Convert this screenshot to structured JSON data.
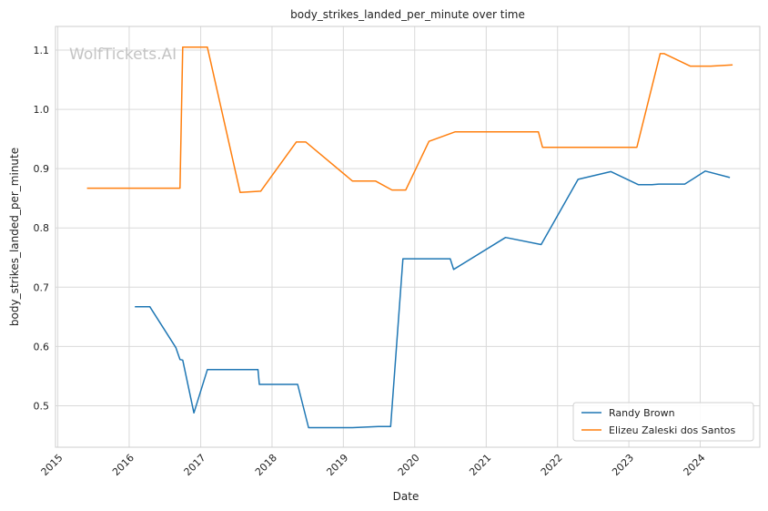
{
  "watermark": "WolfTickets.AI",
  "chart_data": {
    "type": "line",
    "title": "body_strikes_landed_per_minute over time",
    "xlabel": "Date",
    "ylabel": "body_strikes_landed_per_minute",
    "xlim": [
      "2014-12-20",
      "2024-11-01"
    ],
    "ylim": [
      0.43,
      1.14
    ],
    "x_ticks": [
      "2015",
      "2016",
      "2017",
      "2018",
      "2019",
      "2020",
      "2021",
      "2022",
      "2023",
      "2024"
    ],
    "y_ticks": [
      "0.5",
      "0.6",
      "0.7",
      "0.8",
      "0.9",
      "1.0",
      "1.1"
    ],
    "y_tick_values": [
      0.5,
      0.6,
      0.7,
      0.8,
      0.9,
      1.0,
      1.1
    ],
    "grid": true,
    "legend_position": "lower-right",
    "series": [
      {
        "name": "Randy Brown",
        "color": "#1f77b4",
        "points": [
          [
            "2016-01-30",
            0.667
          ],
          [
            "2016-04-16",
            0.667
          ],
          [
            "2016-08-27",
            0.598
          ],
          [
            "2016-09-17",
            0.578
          ],
          [
            "2016-10-01",
            0.577
          ],
          [
            "2016-11-27",
            0.488
          ],
          [
            "2017-02-04",
            0.561
          ],
          [
            "2017-10-21",
            0.561
          ],
          [
            "2017-10-28",
            0.536
          ],
          [
            "2018-05-12",
            0.536
          ],
          [
            "2018-07-07",
            0.463
          ],
          [
            "2019-02-17",
            0.463
          ],
          [
            "2019-06-29",
            0.465
          ],
          [
            "2019-08-31",
            0.465
          ],
          [
            "2019-11-02",
            0.748
          ],
          [
            "2020-07-01",
            0.748
          ],
          [
            "2020-07-18",
            0.73
          ],
          [
            "2021-04-10",
            0.784
          ],
          [
            "2021-10-09",
            0.772
          ],
          [
            "2022-04-16",
            0.882
          ],
          [
            "2022-10-01",
            0.895
          ],
          [
            "2023-02-18",
            0.873
          ],
          [
            "2023-04-29",
            0.873
          ],
          [
            "2023-06-03",
            0.874
          ],
          [
            "2023-10-14",
            0.874
          ],
          [
            "2024-01-27",
            0.896
          ],
          [
            "2024-06-01",
            0.885
          ]
        ]
      },
      {
        "name": "Elizeu Zaleski dos Santos",
        "color": "#ff7f0e",
        "points": [
          [
            "2015-05-30",
            0.867
          ],
          [
            "2016-09-17",
            0.867
          ],
          [
            "2016-10-01",
            1.105
          ],
          [
            "2017-02-04",
            1.105
          ],
          [
            "2017-07-22",
            0.86
          ],
          [
            "2017-11-04",
            0.862
          ],
          [
            "2018-05-05",
            0.945
          ],
          [
            "2018-06-23",
            0.945
          ],
          [
            "2019-02-17",
            0.879
          ],
          [
            "2019-06-15",
            0.879
          ],
          [
            "2019-09-07",
            0.864
          ],
          [
            "2019-11-16",
            0.864
          ],
          [
            "2020-03-14",
            0.946
          ],
          [
            "2020-07-25",
            0.962
          ],
          [
            "2021-09-25",
            0.962
          ],
          [
            "2021-10-16",
            0.936
          ],
          [
            "2023-02-11",
            0.936
          ],
          [
            "2023-06-10",
            1.094
          ],
          [
            "2023-07-01",
            1.094
          ],
          [
            "2023-11-11",
            1.073
          ],
          [
            "2024-02-24",
            1.073
          ],
          [
            "2024-06-15",
            1.075
          ]
        ]
      }
    ]
  }
}
